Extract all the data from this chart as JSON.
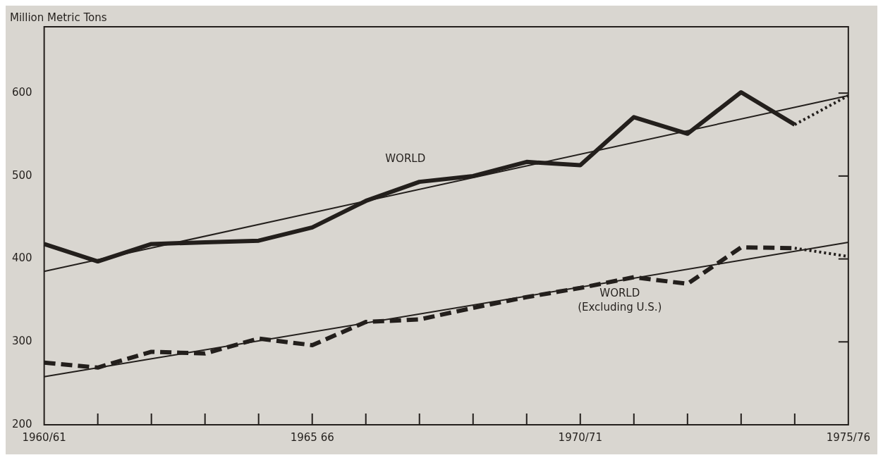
{
  "chart_data": {
    "type": "line",
    "ylabel": "Million Metric Tons",
    "categories": [
      "1960/61",
      null,
      null,
      null,
      null,
      "1965 66",
      null,
      null,
      null,
      null,
      "1970/71",
      null,
      null,
      null,
      null,
      "1975/76"
    ],
    "ylim": [
      200,
      680
    ],
    "yticks": [
      200,
      300,
      400,
      500,
      600
    ],
    "grid": false,
    "legend": false,
    "marker": "none",
    "series": [
      {
        "name": "WORLD",
        "color": "#231f1c",
        "line_style": "solid",
        "values": [
          418,
          397,
          418,
          420,
          422,
          438,
          470,
          493,
          500,
          517,
          513,
          571,
          551,
          601,
          562,
          null
        ]
      },
      {
        "color": "#231f1c",
        "line_style": "dotted",
        "values": [
          null,
          null,
          null,
          null,
          null,
          null,
          null,
          null,
          null,
          null,
          null,
          null,
          null,
          null,
          562,
          597
        ]
      },
      {
        "color": "#231f1c",
        "line_style": "solid",
        "values": [
          385,
          null,
          null,
          null,
          null,
          null,
          null,
          null,
          null,
          null,
          null,
          null,
          null,
          null,
          null,
          597
        ]
      },
      {
        "name": "WORLD\n(Excluding U.S.)",
        "color": "#231f1c",
        "line_style": "dashed",
        "values": [
          275,
          269,
          288,
          286,
          304,
          296,
          324,
          327,
          341,
          354,
          365,
          378,
          370,
          414,
          413,
          null
        ]
      },
      {
        "color": "#231f1c",
        "line_style": "dotted",
        "values": [
          null,
          null,
          null,
          null,
          null,
          null,
          null,
          null,
          null,
          null,
          null,
          null,
          null,
          null,
          413,
          403
        ]
      },
      {
        "color": "#231f1c",
        "line_style": "solid",
        "values": [
          258,
          null,
          null,
          null,
          null,
          null,
          null,
          null,
          null,
          null,
          null,
          null,
          null,
          null,
          null,
          420
        ]
      }
    ]
  }
}
